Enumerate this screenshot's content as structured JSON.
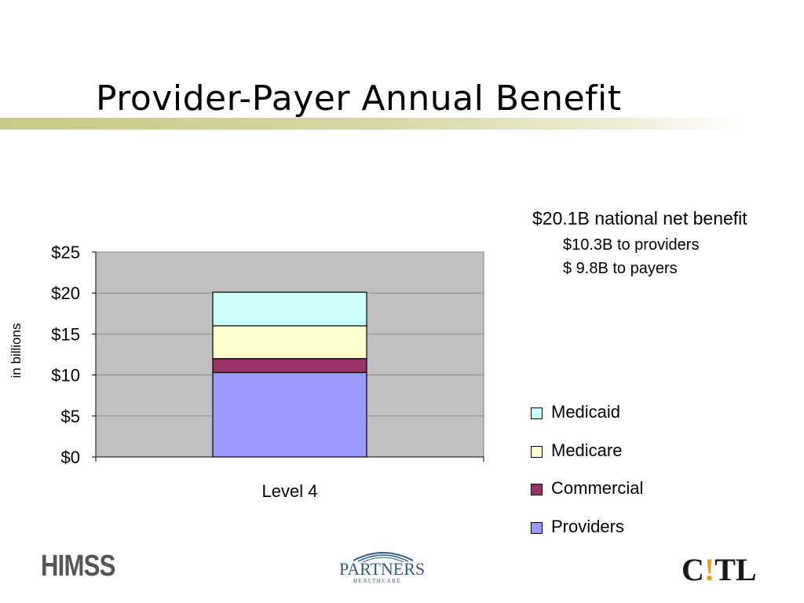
{
  "slide": {
    "title": "Provider-Payer Annual Benefit"
  },
  "notes": {
    "main": "$20.1B national net benefit",
    "sub1": "$10.3B to providers",
    "sub2": "$ 9.8B to payers"
  },
  "chart_data": {
    "type": "bar",
    "stacked": true,
    "categories": [
      "Level 4"
    ],
    "series": [
      {
        "name": "Providers",
        "values": [
          10.3
        ],
        "color": "#9999ff"
      },
      {
        "name": "Commercial",
        "values": [
          1.7
        ],
        "color": "#993366"
      },
      {
        "name": "Medicare",
        "values": [
          4.0
        ],
        "color": "#ffffcc"
      },
      {
        "name": "Medicaid",
        "values": [
          4.1
        ],
        "color": "#ccffff"
      }
    ],
    "ylabel": "in billions",
    "ylim": [
      0,
      25
    ],
    "yticks": [
      0,
      5,
      10,
      15,
      20,
      25
    ],
    "ytick_labels": [
      "$0",
      "$5",
      "$10",
      "$15",
      "$20",
      "$25"
    ],
    "grid": true,
    "plot_background": "#c0c0c0",
    "legend_position": "right",
    "legend_order": [
      "Medicaid",
      "Medicare",
      "Commercial",
      "Providers"
    ]
  },
  "logos": {
    "himss": "HIMSS",
    "partners": "PARTNERS",
    "partners_sub": "HEALTHCARE",
    "partners_tm": "TM",
    "citl_left": "C",
    "citl_bang": "!",
    "citl_right": "TL"
  }
}
